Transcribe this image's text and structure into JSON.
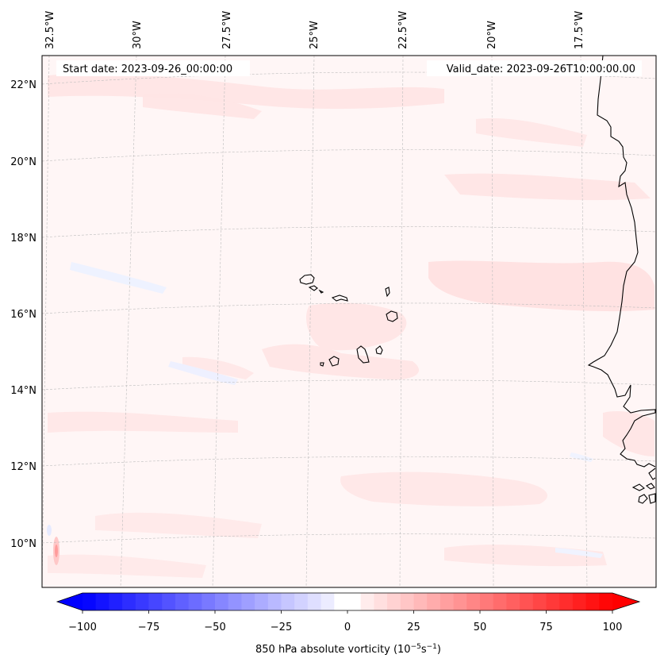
{
  "map": {
    "start_label": "Start date: 2023-09-26_00:00:00",
    "valid_label": "Valid_date: 2023-09-26T10:00:00.00",
    "lon_labels": [
      "32.5°W",
      "30°W",
      "27.5°W",
      "25°W",
      "22.5°W",
      "20°W",
      "17.5°W"
    ],
    "lat_labels": [
      "22°N",
      "20°N",
      "18°N",
      "16°N",
      "14°N",
      "12°N",
      "10°N"
    ],
    "field_color_positive": "#ff0000",
    "field_color_negative": "#0000ff",
    "coast_color": "#000000",
    "gridline_color": "#bdbdbd"
  },
  "colorbar": {
    "label_prefix": "850 hPa absolute vorticity (10",
    "label_exp1": "−5",
    "label_mid": "s",
    "label_exp2": "−1",
    "label_suffix": ")",
    "ticks": [
      "−100",
      "−75",
      "−50",
      "−25",
      "0",
      "25",
      "50",
      "75",
      "100"
    ],
    "vmin": -100,
    "vmax": 100,
    "levels": 40
  }
}
